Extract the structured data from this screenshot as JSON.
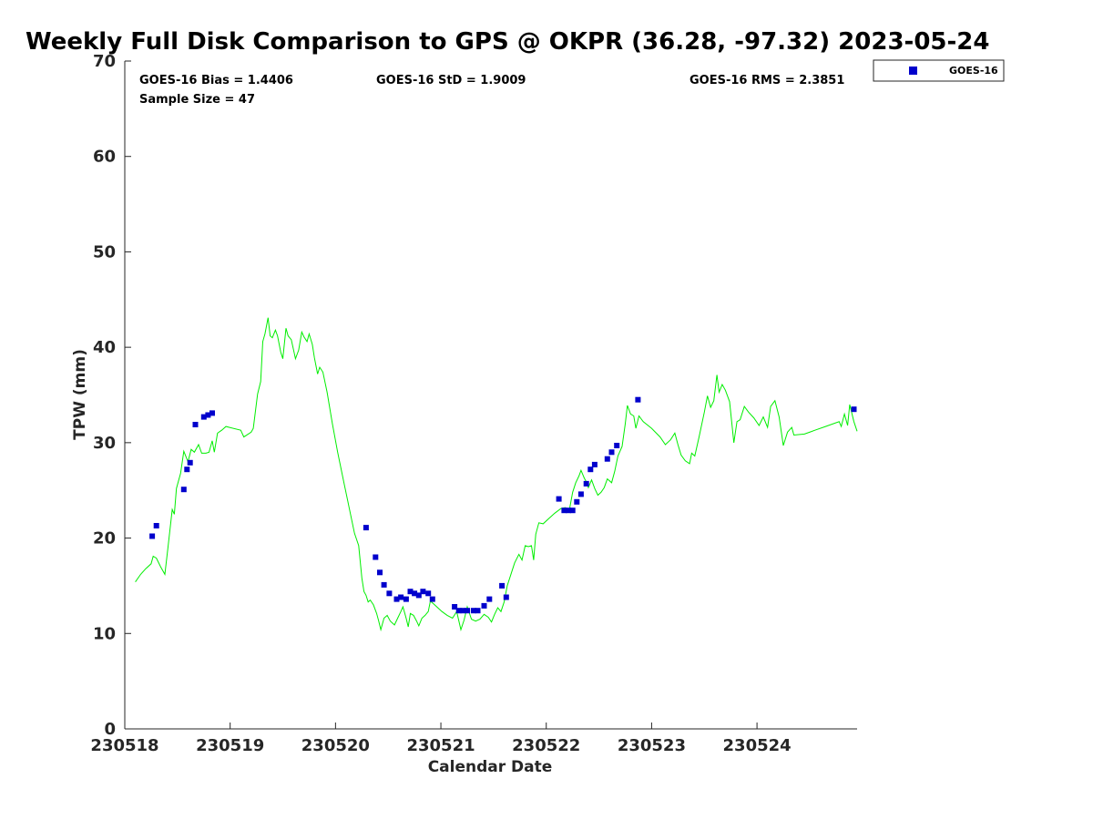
{
  "chart_data": {
    "type": "scatter",
    "title": "Weekly Full Disk Comparison to GPS @ OKPR (36.28, -97.32) 2023-05-24",
    "xlabel": "Calendar Date",
    "ylabel": "TPW (mm)",
    "xlim": [
      0,
      6.95
    ],
    "ylim": [
      0,
      70
    ],
    "x_unit": "days",
    "x_ticks": [
      {
        "value": 0,
        "label": "230518"
      },
      {
        "value": 1,
        "label": "230519"
      },
      {
        "value": 2,
        "label": "230520"
      },
      {
        "value": 3,
        "label": "230521"
      },
      {
        "value": 4,
        "label": "230522"
      },
      {
        "value": 5,
        "label": "230523"
      },
      {
        "value": 6,
        "label": "230524"
      }
    ],
    "y_ticks": [
      0,
      10,
      20,
      30,
      40,
      50,
      60,
      70
    ],
    "grid": false,
    "legend_position": "outside-top-right",
    "stats": {
      "bias": "GOES-16 Bias = 1.4406",
      "std": "GOES-16 StD = 1.9009",
      "rms": "GOES-16 RMS = 2.3851",
      "sample": "Sample Size = 47"
    },
    "series": [
      {
        "name": "GOES-16",
        "kind": "scatter",
        "color": "#0000cc",
        "points": [
          [
            0.26,
            20.2
          ],
          [
            0.3,
            21.3
          ],
          [
            0.56,
            25.1
          ],
          [
            0.59,
            27.2
          ],
          [
            0.62,
            27.9
          ],
          [
            0.67,
            31.9
          ],
          [
            0.75,
            32.7
          ],
          [
            0.79,
            32.9
          ],
          [
            0.83,
            33.1
          ],
          [
            2.29,
            21.1
          ],
          [
            2.38,
            18.0
          ],
          [
            2.42,
            16.4
          ],
          [
            2.46,
            15.1
          ],
          [
            2.51,
            14.2
          ],
          [
            2.58,
            13.6
          ],
          [
            2.62,
            13.8
          ],
          [
            2.67,
            13.6
          ],
          [
            2.71,
            14.4
          ],
          [
            2.75,
            14.2
          ],
          [
            2.79,
            14.0
          ],
          [
            2.83,
            14.4
          ],
          [
            2.88,
            14.2
          ],
          [
            2.92,
            13.6
          ],
          [
            3.13,
            12.8
          ],
          [
            3.17,
            12.4
          ],
          [
            3.21,
            12.4
          ],
          [
            3.25,
            12.4
          ],
          [
            3.31,
            12.4
          ],
          [
            3.35,
            12.4
          ],
          [
            3.41,
            12.9
          ],
          [
            3.46,
            13.6
          ],
          [
            3.58,
            15.0
          ],
          [
            3.62,
            13.8
          ],
          [
            4.12,
            24.1
          ],
          [
            4.17,
            22.9
          ],
          [
            4.21,
            22.9
          ],
          [
            4.25,
            22.9
          ],
          [
            4.29,
            23.8
          ],
          [
            4.33,
            24.6
          ],
          [
            4.38,
            25.7
          ],
          [
            4.42,
            27.2
          ],
          [
            4.46,
            27.7
          ],
          [
            4.58,
            28.3
          ],
          [
            4.62,
            29.0
          ],
          [
            4.67,
            29.7
          ],
          [
            4.87,
            34.5
          ],
          [
            6.92,
            33.5
          ]
        ]
      },
      {
        "kind": "line",
        "color": "#00ee00",
        "points": [
          [
            0.1,
            15.4
          ],
          [
            0.15,
            16.2
          ],
          [
            0.2,
            16.8
          ],
          [
            0.25,
            17.3
          ],
          [
            0.27,
            18.1
          ],
          [
            0.3,
            17.9
          ],
          [
            0.34,
            17.0
          ],
          [
            0.38,
            16.2
          ],
          [
            0.41,
            19.0
          ],
          [
            0.45,
            23.0
          ],
          [
            0.47,
            22.5
          ],
          [
            0.49,
            25.2
          ],
          [
            0.53,
            26.8
          ],
          [
            0.56,
            29.1
          ],
          [
            0.6,
            28.0
          ],
          [
            0.63,
            29.3
          ],
          [
            0.66,
            29.0
          ],
          [
            0.7,
            29.8
          ],
          [
            0.73,
            28.9
          ],
          [
            0.77,
            28.9
          ],
          [
            0.8,
            29.0
          ],
          [
            0.83,
            30.2
          ],
          [
            0.85,
            29.0
          ],
          [
            0.88,
            31.0
          ],
          [
            0.92,
            31.3
          ],
          [
            0.96,
            31.7
          ],
          [
            1.1,
            31.3
          ],
          [
            1.13,
            30.6
          ],
          [
            1.2,
            31.1
          ],
          [
            1.22,
            31.5
          ],
          [
            1.26,
            35.1
          ],
          [
            1.29,
            36.4
          ],
          [
            1.31,
            40.6
          ],
          [
            1.33,
            41.4
          ],
          [
            1.36,
            43.1
          ],
          [
            1.38,
            41.2
          ],
          [
            1.4,
            41.0
          ],
          [
            1.43,
            41.8
          ],
          [
            1.45,
            41.2
          ],
          [
            1.48,
            39.5
          ],
          [
            1.5,
            38.8
          ],
          [
            1.53,
            42.0
          ],
          [
            1.55,
            41.2
          ],
          [
            1.58,
            40.8
          ],
          [
            1.6,
            39.8
          ],
          [
            1.62,
            38.8
          ],
          [
            1.65,
            39.7
          ],
          [
            1.68,
            41.6
          ],
          [
            1.7,
            41.1
          ],
          [
            1.73,
            40.6
          ],
          [
            1.75,
            41.4
          ],
          [
            1.78,
            40.3
          ],
          [
            1.8,
            38.9
          ],
          [
            1.83,
            37.2
          ],
          [
            1.85,
            37.9
          ],
          [
            1.88,
            37.4
          ],
          [
            1.92,
            35.3
          ],
          [
            1.97,
            32.0
          ],
          [
            2.02,
            29.0
          ],
          [
            2.08,
            25.8
          ],
          [
            2.14,
            22.6
          ],
          [
            2.18,
            20.5
          ],
          [
            2.22,
            19.2
          ],
          [
            2.25,
            15.8
          ],
          [
            2.27,
            14.4
          ],
          [
            2.29,
            14.0
          ],
          [
            2.31,
            13.3
          ],
          [
            2.33,
            13.5
          ],
          [
            2.36,
            13.0
          ],
          [
            2.39,
            12.1
          ],
          [
            2.41,
            11.3
          ],
          [
            2.43,
            10.4
          ],
          [
            2.46,
            11.6
          ],
          [
            2.49,
            11.9
          ],
          [
            2.52,
            11.3
          ],
          [
            2.56,
            10.9
          ],
          [
            2.59,
            11.6
          ],
          [
            2.62,
            12.3
          ],
          [
            2.64,
            12.8
          ],
          [
            2.67,
            11.6
          ],
          [
            2.69,
            10.7
          ],
          [
            2.71,
            12.1
          ],
          [
            2.74,
            11.9
          ],
          [
            2.77,
            11.3
          ],
          [
            2.79,
            10.8
          ],
          [
            2.82,
            11.6
          ],
          [
            2.85,
            11.9
          ],
          [
            2.88,
            12.3
          ],
          [
            2.9,
            13.4
          ],
          [
            2.93,
            13.1
          ],
          [
            2.97,
            12.7
          ],
          [
            3.01,
            12.3
          ],
          [
            3.06,
            11.9
          ],
          [
            3.11,
            11.6
          ],
          [
            3.15,
            12.3
          ],
          [
            3.19,
            10.4
          ],
          [
            3.22,
            11.4
          ],
          [
            3.25,
            12.8
          ],
          [
            3.29,
            11.5
          ],
          [
            3.33,
            11.3
          ],
          [
            3.37,
            11.5
          ],
          [
            3.41,
            12.0
          ],
          [
            3.45,
            11.7
          ],
          [
            3.48,
            11.2
          ],
          [
            3.51,
            12.0
          ],
          [
            3.54,
            12.7
          ],
          [
            3.57,
            12.3
          ],
          [
            3.6,
            13.3
          ],
          [
            3.63,
            15.0
          ],
          [
            3.67,
            16.4
          ],
          [
            3.7,
            17.4
          ],
          [
            3.74,
            18.3
          ],
          [
            3.77,
            17.7
          ],
          [
            3.8,
            19.2
          ],
          [
            3.83,
            19.1
          ],
          [
            3.86,
            19.2
          ],
          [
            3.88,
            17.7
          ],
          [
            3.9,
            20.4
          ],
          [
            3.93,
            21.6
          ],
          [
            3.97,
            21.5
          ],
          [
            4.02,
            22.0
          ],
          [
            4.08,
            22.6
          ],
          [
            4.14,
            23.1
          ],
          [
            4.18,
            23.2
          ],
          [
            4.22,
            23.0
          ],
          [
            4.25,
            24.8
          ],
          [
            4.28,
            25.8
          ],
          [
            4.31,
            26.5
          ],
          [
            4.33,
            27.1
          ],
          [
            4.36,
            26.3
          ],
          [
            4.38,
            25.9
          ],
          [
            4.4,
            25.3
          ],
          [
            4.43,
            26.1
          ],
          [
            4.46,
            25.2
          ],
          [
            4.49,
            24.5
          ],
          [
            4.52,
            24.8
          ],
          [
            4.55,
            25.3
          ],
          [
            4.58,
            26.2
          ],
          [
            4.62,
            25.8
          ],
          [
            4.65,
            27.0
          ],
          [
            4.68,
            28.6
          ],
          [
            4.72,
            29.6
          ],
          [
            4.75,
            32.0
          ],
          [
            4.77,
            33.9
          ],
          [
            4.8,
            33.0
          ],
          [
            4.83,
            32.8
          ],
          [
            4.85,
            31.5
          ],
          [
            4.88,
            32.8
          ],
          [
            4.92,
            32.2
          ],
          [
            5.0,
            31.5
          ],
          [
            5.08,
            30.6
          ],
          [
            5.13,
            29.8
          ],
          [
            5.18,
            30.3
          ],
          [
            5.22,
            31.0
          ],
          [
            5.25,
            29.8
          ],
          [
            5.28,
            28.7
          ],
          [
            5.32,
            28.1
          ],
          [
            5.36,
            27.8
          ],
          [
            5.38,
            28.9
          ],
          [
            5.41,
            28.6
          ],
          [
            5.45,
            30.6
          ],
          [
            5.5,
            33.2
          ],
          [
            5.53,
            34.9
          ],
          [
            5.56,
            33.7
          ],
          [
            5.59,
            34.4
          ],
          [
            5.62,
            37.1
          ],
          [
            5.64,
            35.3
          ],
          [
            5.67,
            36.1
          ],
          [
            5.7,
            35.5
          ],
          [
            5.74,
            34.3
          ],
          [
            5.78,
            30.0
          ],
          [
            5.81,
            32.2
          ],
          [
            5.84,
            32.4
          ],
          [
            5.88,
            33.8
          ],
          [
            5.92,
            33.2
          ],
          [
            5.97,
            32.6
          ],
          [
            6.02,
            31.8
          ],
          [
            6.06,
            32.7
          ],
          [
            6.1,
            31.6
          ],
          [
            6.13,
            33.8
          ],
          [
            6.17,
            34.4
          ],
          [
            6.21,
            32.7
          ],
          [
            6.25,
            29.7
          ],
          [
            6.29,
            31.1
          ],
          [
            6.33,
            31.6
          ],
          [
            6.35,
            30.8
          ],
          [
            6.45,
            30.9
          ],
          [
            6.55,
            31.3
          ],
          [
            6.65,
            31.7
          ],
          [
            6.78,
            32.2
          ],
          [
            6.8,
            31.7
          ],
          [
            6.83,
            33.0
          ],
          [
            6.86,
            31.8
          ],
          [
            6.88,
            34.0
          ],
          [
            6.92,
            32.2
          ],
          [
            6.95,
            31.2
          ]
        ]
      }
    ]
  }
}
